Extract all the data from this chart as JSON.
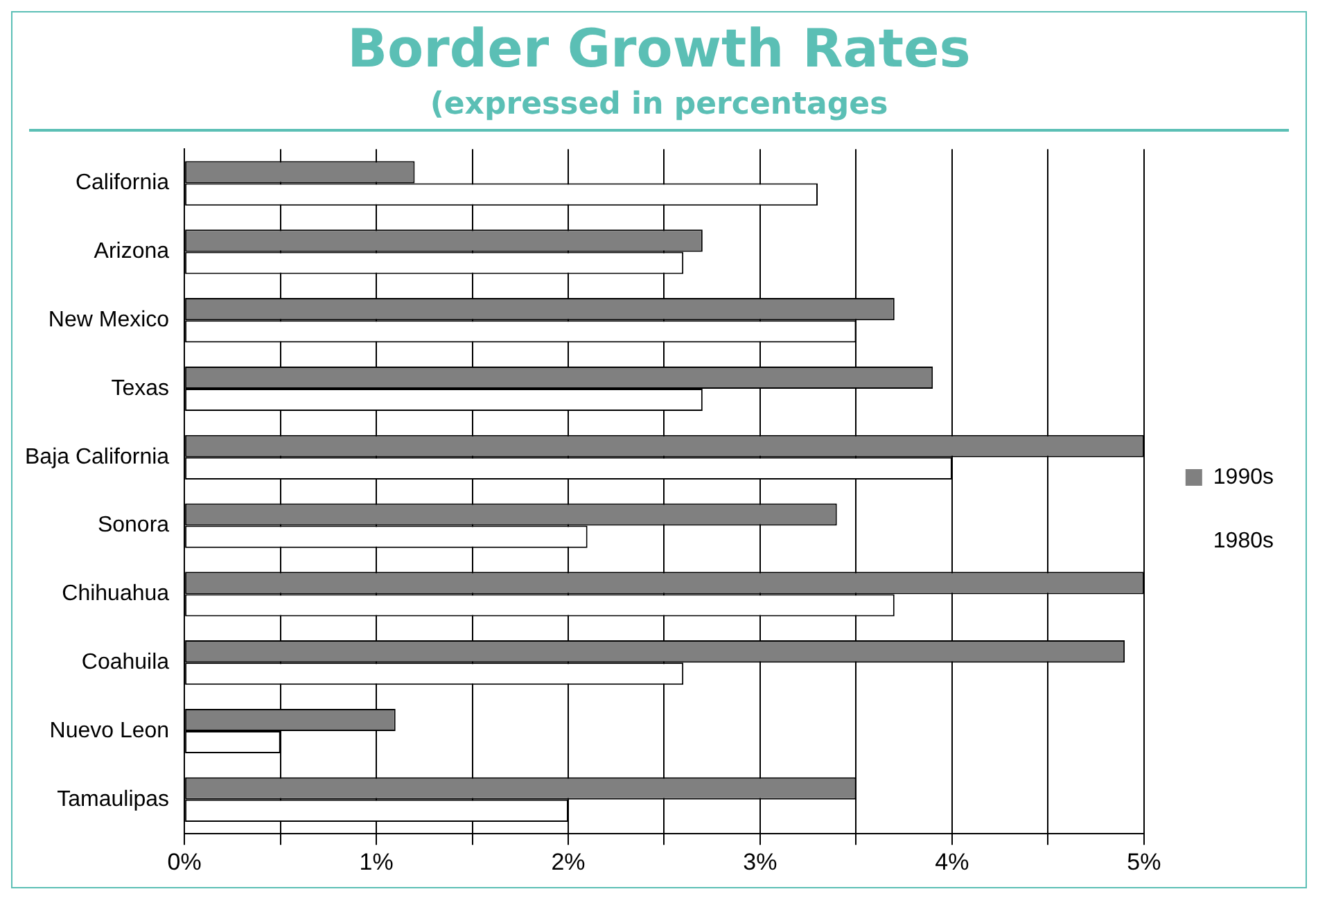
{
  "chart_data": {
    "type": "bar",
    "orientation": "horizontal",
    "title": "Border Growth Rates",
    "subtitle": "(expressed in percentages",
    "categories": [
      "California",
      "Arizona",
      "New Mexico",
      "Texas",
      "Baja California",
      "Sonora",
      "Chihuahua",
      "Coahuila",
      "Nuevo Leon",
      "Tamaulipas"
    ],
    "series": [
      {
        "name": "1990s",
        "color": "#808080",
        "values": [
          1.2,
          2.7,
          3.7,
          3.9,
          5.0,
          3.4,
          5.0,
          4.9,
          1.1,
          3.5
        ]
      },
      {
        "name": "1980s",
        "color": "#ffffff",
        "values": [
          3.3,
          2.6,
          3.5,
          2.7,
          4.0,
          2.1,
          3.7,
          2.6,
          0.5,
          2.0
        ]
      }
    ],
    "xlim": [
      0,
      5
    ],
    "xticks": [
      {
        "value": 0,
        "label": "0%"
      },
      {
        "value": 0.5,
        "label": null
      },
      {
        "value": 1,
        "label": "1%"
      },
      {
        "value": 1.5,
        "label": null
      },
      {
        "value": 2,
        "label": "2%"
      },
      {
        "value": 2.5,
        "label": null
      },
      {
        "value": 3,
        "label": "3%"
      },
      {
        "value": 3.5,
        "label": null
      },
      {
        "value": 4,
        "label": "4%"
      },
      {
        "value": 4.5,
        "label": null
      },
      {
        "value": 5,
        "label": "5%"
      }
    ],
    "grid": "x",
    "legend": "right"
  }
}
